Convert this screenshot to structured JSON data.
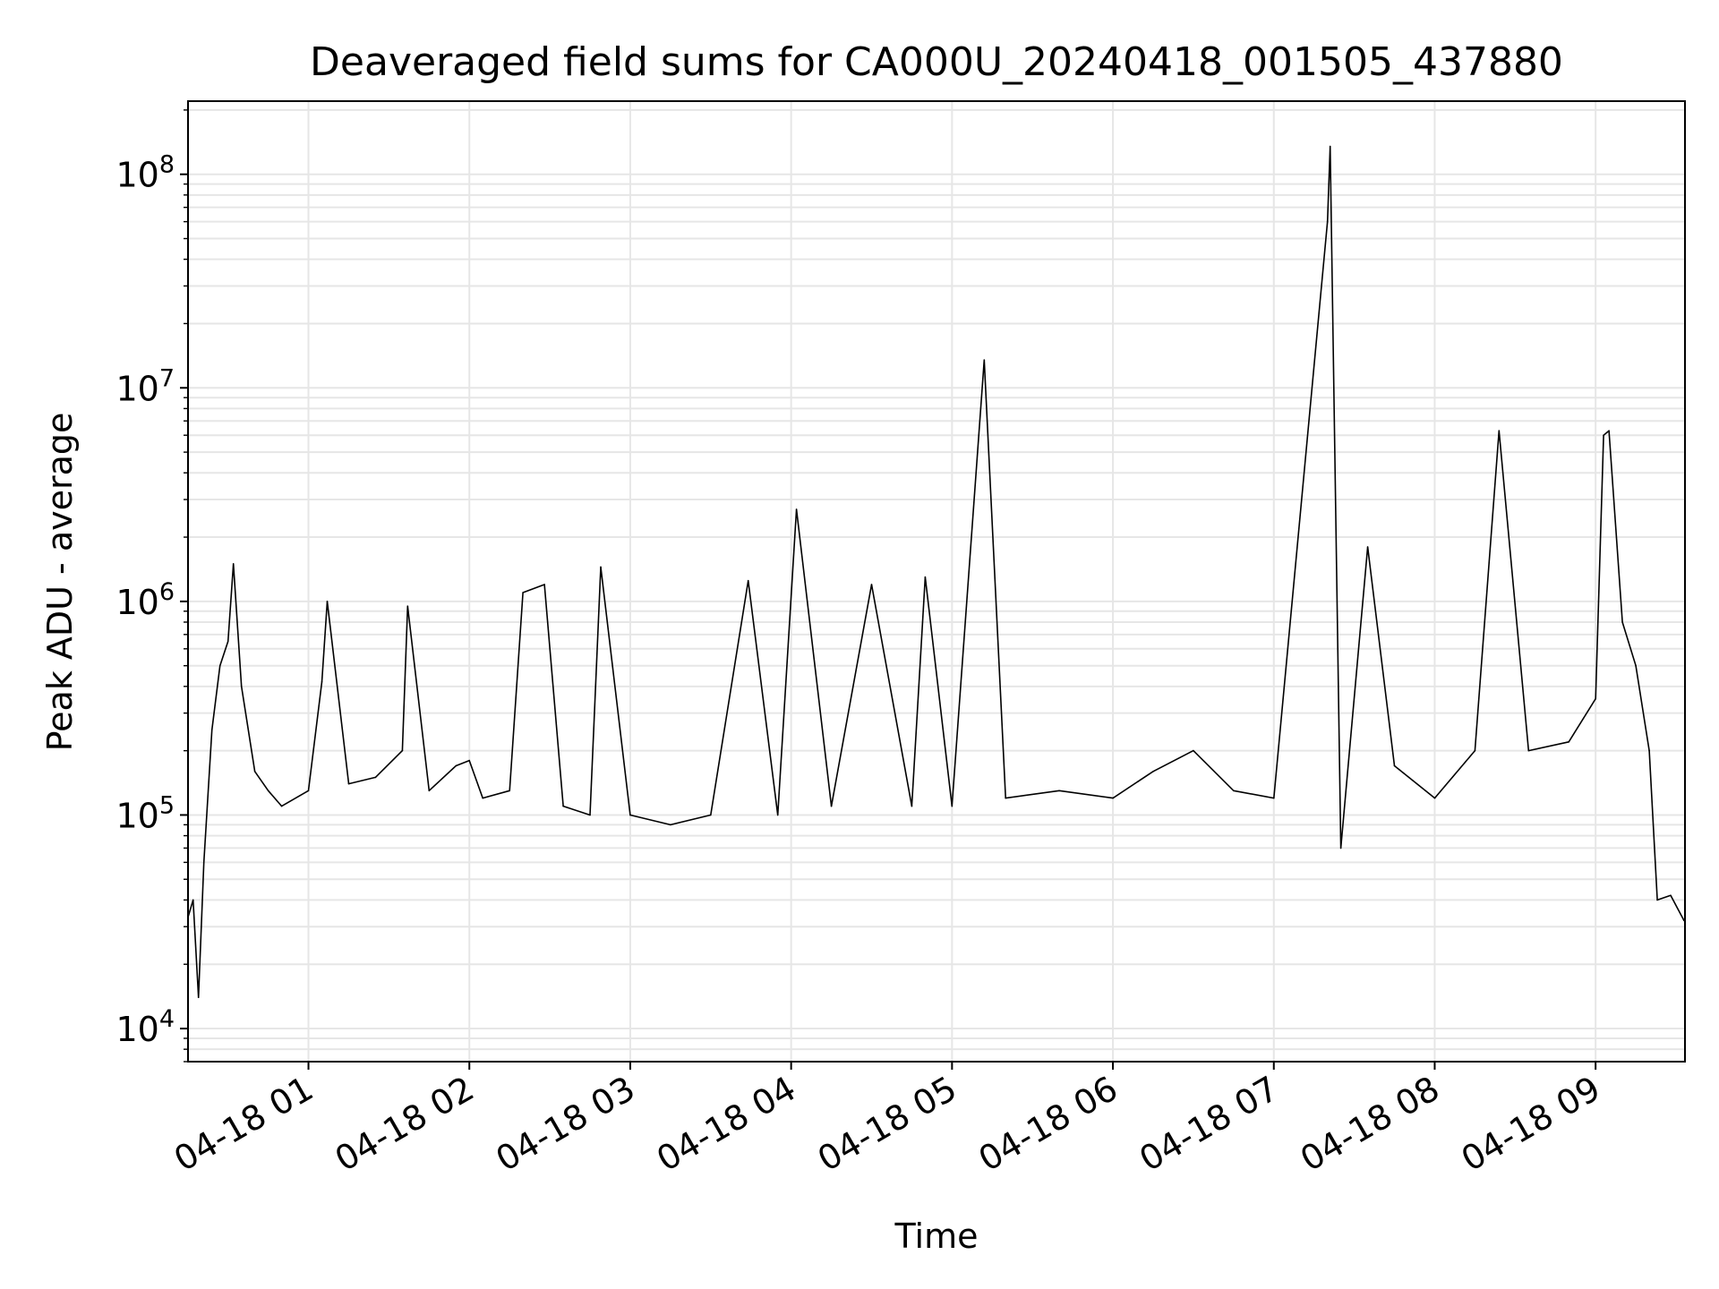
{
  "chart_data": {
    "type": "line",
    "title": "Deaveraged field sums for CA000U_20240418_001505_437880",
    "xlabel": "Time",
    "ylabel": "Peak ADU - average",
    "xscale": "time",
    "yscale": "log",
    "xlim": [
      "2024-04-18 00:15:05",
      "2024-04-18 09:33:20"
    ],
    "ylim": [
      7000,
      220000000
    ],
    "grid": true,
    "line_color": "#000000",
    "x_ticks": [
      {
        "t": "2024-04-18 01:00",
        "label": "04-18 01"
      },
      {
        "t": "2024-04-18 02:00",
        "label": "04-18 02"
      },
      {
        "t": "2024-04-18 03:00",
        "label": "04-18 03"
      },
      {
        "t": "2024-04-18 04:00",
        "label": "04-18 04"
      },
      {
        "t": "2024-04-18 05:00",
        "label": "04-18 05"
      },
      {
        "t": "2024-04-18 06:00",
        "label": "04-18 06"
      },
      {
        "t": "2024-04-18 07:00",
        "label": "04-18 07"
      },
      {
        "t": "2024-04-18 08:00",
        "label": "04-18 08"
      },
      {
        "t": "2024-04-18 09:00",
        "label": "04-18 09"
      }
    ],
    "y_ticks": [
      {
        "value": 10000,
        "base": "10",
        "exp": "4"
      },
      {
        "value": 100000,
        "base": "10",
        "exp": "5"
      },
      {
        "value": 1000000,
        "base": "10",
        "exp": "6"
      },
      {
        "value": 10000000,
        "base": "10",
        "exp": "7"
      },
      {
        "value": 100000000,
        "base": "10",
        "exp": "8"
      }
    ],
    "series": [
      {
        "values": [
          [
            "2024-04-18 00:15",
            33000
          ],
          [
            "2024-04-18 00:17",
            40000
          ],
          [
            "2024-04-18 00:19",
            14000
          ],
          [
            "2024-04-18 00:21",
            60000
          ],
          [
            "2024-04-18 00:24",
            250000
          ],
          [
            "2024-04-18 00:27",
            500000
          ],
          [
            "2024-04-18 00:30",
            650000
          ],
          [
            "2024-04-18 00:32",
            1500000
          ],
          [
            "2024-04-18 00:35",
            400000
          ],
          [
            "2024-04-18 00:40",
            160000
          ],
          [
            "2024-04-18 00:45",
            130000
          ],
          [
            "2024-04-18 00:50",
            110000
          ],
          [
            "2024-04-18 01:00",
            130000
          ],
          [
            "2024-04-18 01:05",
            420000
          ],
          [
            "2024-04-18 01:07",
            1000000
          ],
          [
            "2024-04-18 01:15",
            140000
          ],
          [
            "2024-04-18 01:25",
            150000
          ],
          [
            "2024-04-18 01:35",
            200000
          ],
          [
            "2024-04-18 01:37",
            950000
          ],
          [
            "2024-04-18 01:45",
            130000
          ],
          [
            "2024-04-18 01:55",
            170000
          ],
          [
            "2024-04-18 02:00",
            180000
          ],
          [
            "2024-04-18 02:05",
            120000
          ],
          [
            "2024-04-18 02:15",
            130000
          ],
          [
            "2024-04-18 02:20",
            1100000
          ],
          [
            "2024-04-18 02:28",
            1200000
          ],
          [
            "2024-04-18 02:35",
            110000
          ],
          [
            "2024-04-18 02:45",
            100000
          ],
          [
            "2024-04-18 02:49",
            1450000
          ],
          [
            "2024-04-18 03:00",
            100000
          ],
          [
            "2024-04-18 03:15",
            90000
          ],
          [
            "2024-04-18 03:30",
            100000
          ],
          [
            "2024-04-18 03:44",
            1250000
          ],
          [
            "2024-04-18 03:55",
            100000
          ],
          [
            "2024-04-18 04:02",
            2700000
          ],
          [
            "2024-04-18 04:15",
            110000
          ],
          [
            "2024-04-18 04:30",
            1200000
          ],
          [
            "2024-04-18 04:45",
            110000
          ],
          [
            "2024-04-18 04:50",
            1300000
          ],
          [
            "2024-04-18 05:00",
            110000
          ],
          [
            "2024-04-18 05:12",
            13500000
          ],
          [
            "2024-04-18 05:20",
            120000
          ],
          [
            "2024-04-18 05:40",
            130000
          ],
          [
            "2024-04-18 06:00",
            120000
          ],
          [
            "2024-04-18 06:15",
            160000
          ],
          [
            "2024-04-18 06:30",
            200000
          ],
          [
            "2024-04-18 06:45",
            130000
          ],
          [
            "2024-04-18 07:00",
            120000
          ],
          [
            "2024-04-18 07:20",
            60000000
          ],
          [
            "2024-04-18 07:21",
            135000000
          ],
          [
            "2024-04-18 07:25",
            70000
          ],
          [
            "2024-04-18 07:35",
            1800000
          ],
          [
            "2024-04-18 07:45",
            170000
          ],
          [
            "2024-04-18 08:00",
            120000
          ],
          [
            "2024-04-18 08:15",
            200000
          ],
          [
            "2024-04-18 08:24",
            6300000
          ],
          [
            "2024-04-18 08:35",
            200000
          ],
          [
            "2024-04-18 08:50",
            220000
          ],
          [
            "2024-04-18 09:00",
            350000
          ],
          [
            "2024-04-18 09:03",
            6000000
          ],
          [
            "2024-04-18 09:05",
            6300000
          ],
          [
            "2024-04-18 09:10",
            800000
          ],
          [
            "2024-04-18 09:15",
            500000
          ],
          [
            "2024-04-18 09:20",
            200000
          ],
          [
            "2024-04-18 09:23",
            40000
          ],
          [
            "2024-04-18 09:28",
            42000
          ],
          [
            "2024-04-18 09:33",
            32000
          ]
        ]
      }
    ]
  }
}
